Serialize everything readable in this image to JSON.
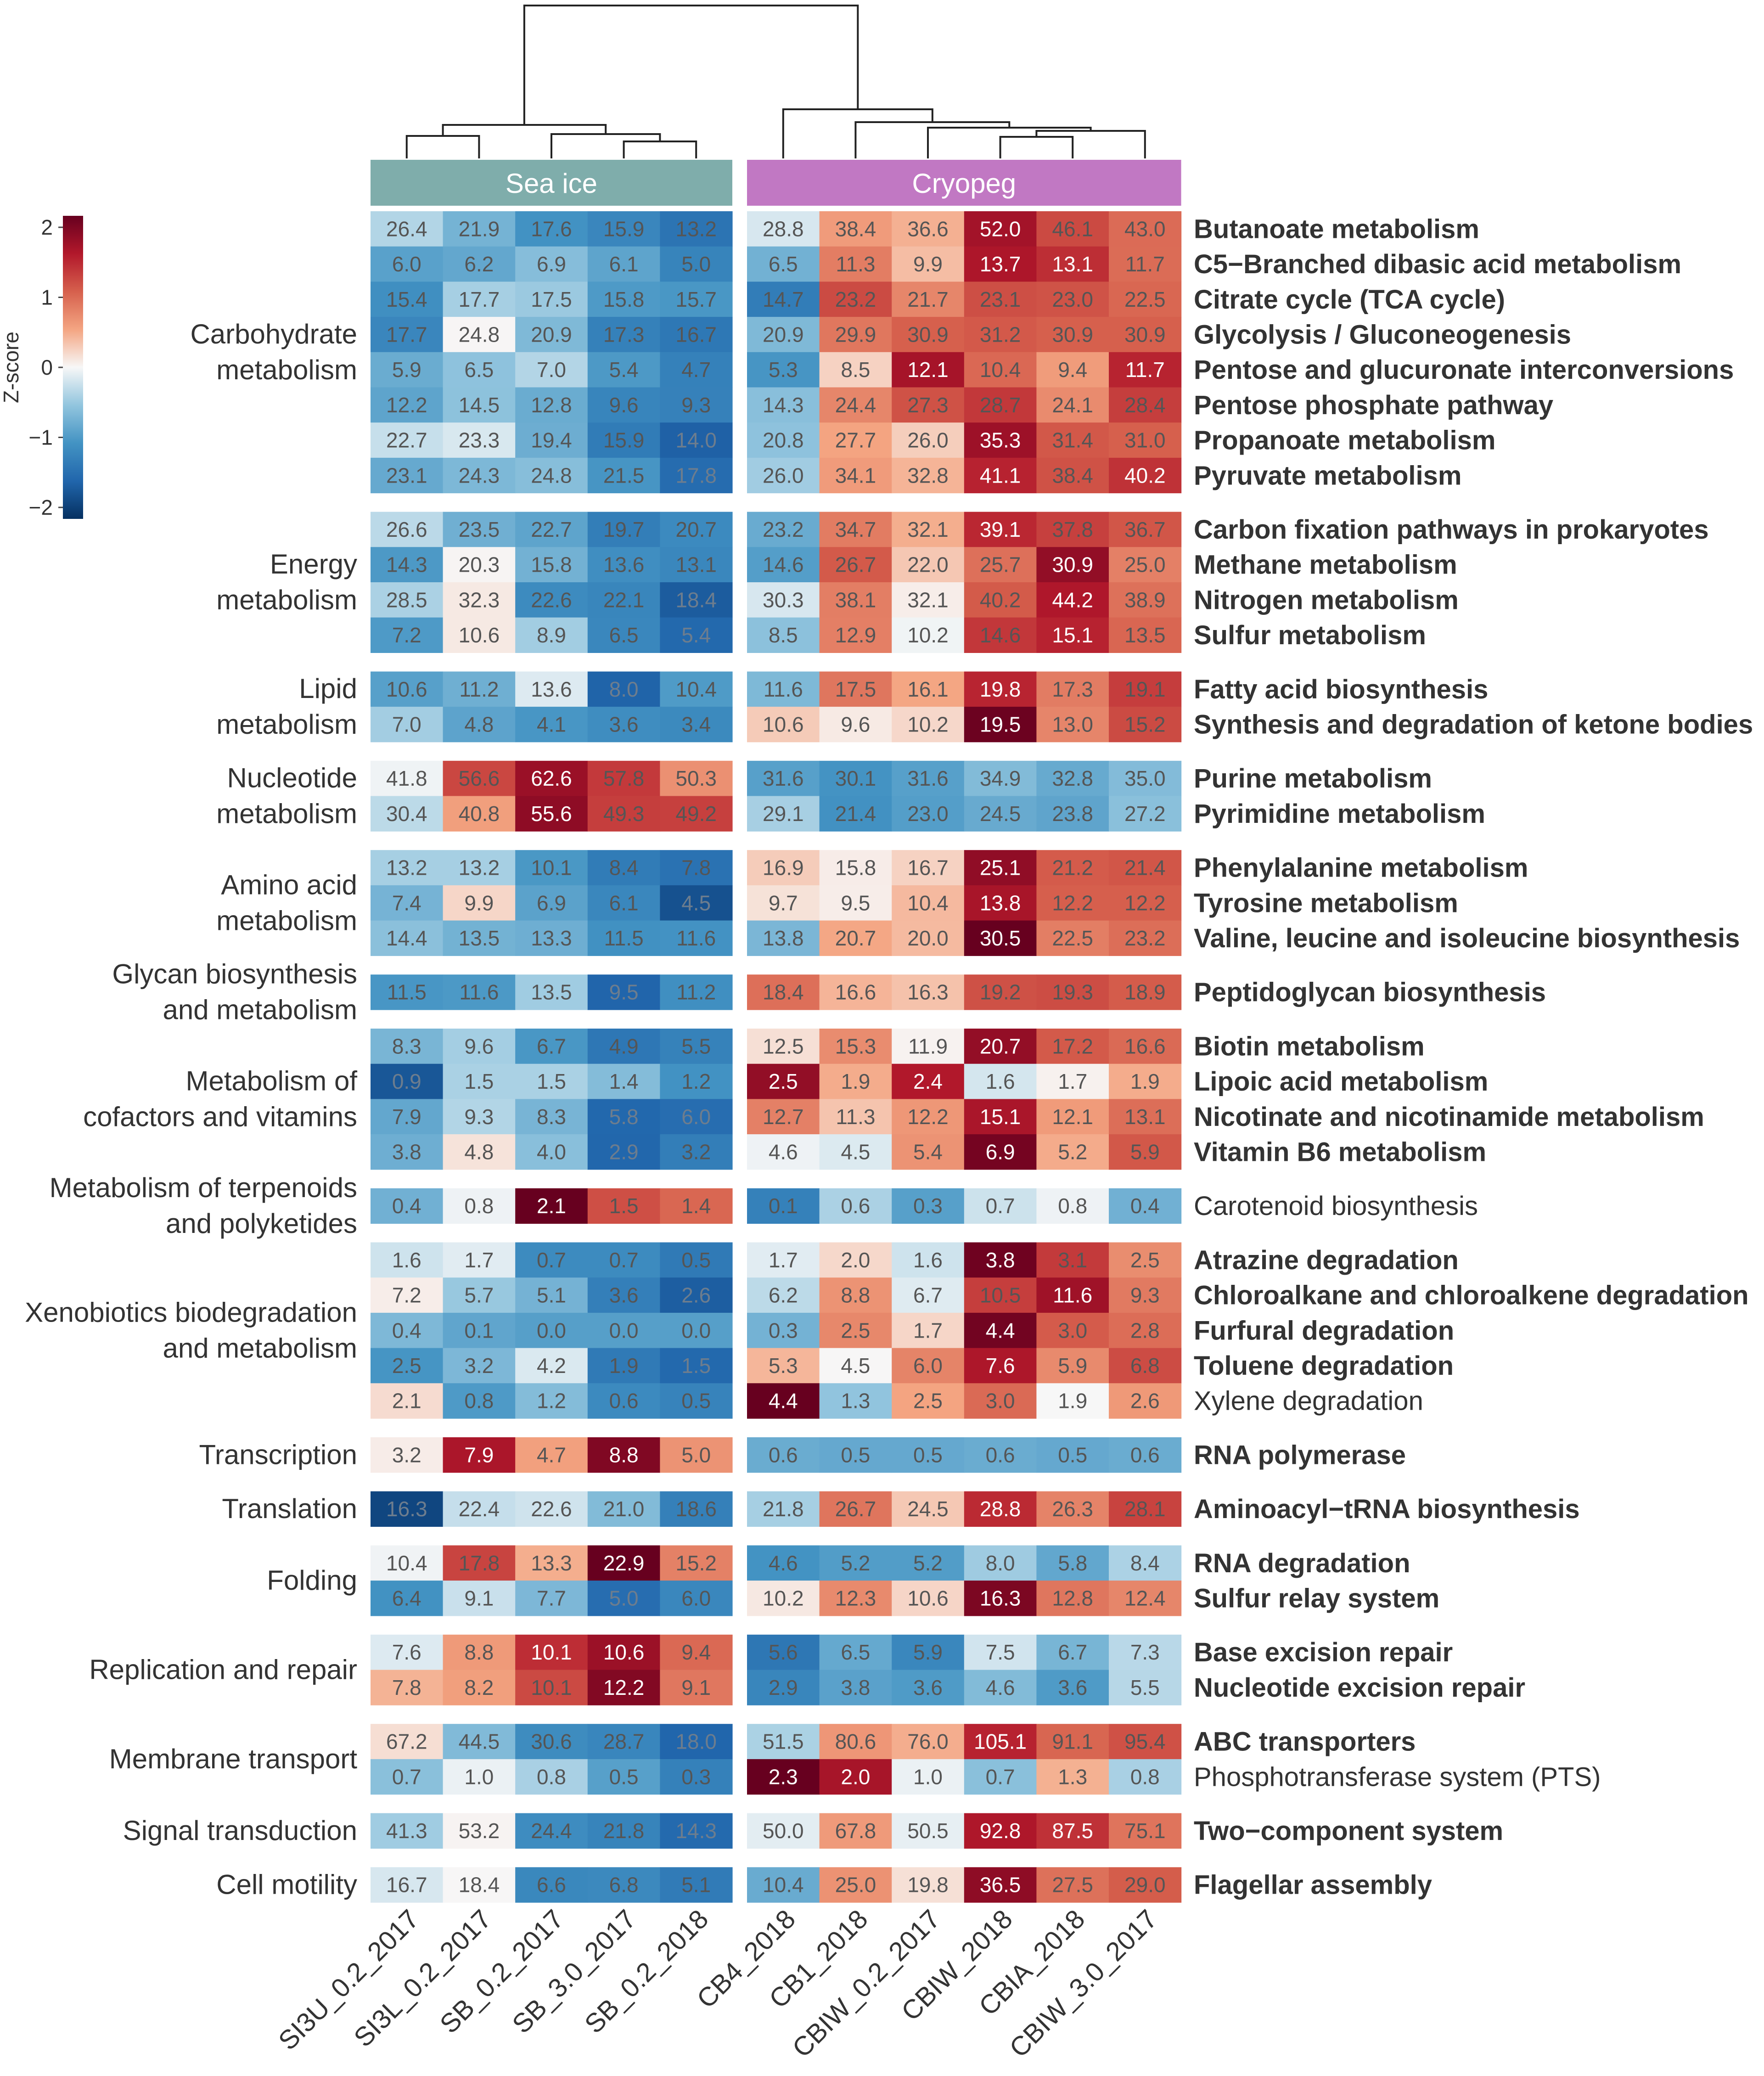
{
  "chart_data": {
    "type": "heatmap",
    "groups": [
      {
        "label": "Sea ice",
        "color": "#7fadab",
        "columns": [
          "SI3U_0.2_2017",
          "SI3L_0.2_2017",
          "SB_0.2_2017",
          "SB_3.0_2017",
          "SB_0.2_2018"
        ]
      },
      {
        "label": "Cryopeg",
        "color": "#c178c3",
        "columns": [
          "CB4_2018",
          "CB1_2018",
          "CBIW_0.2_2017",
          "CBIW_2018",
          "CBIA_2018",
          "CBIW_3.0_2017"
        ]
      }
    ],
    "colorbar": {
      "label": "Z-score",
      "min": -2,
      "max": 2,
      "ticks": [
        "2",
        "1",
        "0",
        "−1",
        "−2"
      ]
    },
    "categories": [
      {
        "label_lines": [
          "Carbohydrate",
          "metabolism"
        ],
        "pathways": [
          {
            "name": "Butanoate metabolism",
            "bold": true,
            "values": [
              26.4,
              21.9,
              17.6,
              15.9,
              13.2,
              28.8,
              38.4,
              36.6,
              52.0,
              46.1,
              43.0
            ]
          },
          {
            "name": "C5−Branched dibasic acid metabolism",
            "bold": true,
            "values": [
              6.0,
              6.2,
              6.9,
              6.1,
              5.0,
              6.5,
              11.3,
              9.9,
              13.7,
              13.1,
              11.7
            ]
          },
          {
            "name": "Citrate cycle (TCA cycle)",
            "bold": true,
            "values": [
              15.4,
              17.7,
              17.5,
              15.8,
              15.7,
              14.7,
              23.2,
              21.7,
              23.1,
              23.0,
              22.5
            ]
          },
          {
            "name": "Glycolysis / Gluconeogenesis",
            "bold": true,
            "values": [
              17.7,
              24.8,
              20.9,
              17.3,
              16.7,
              20.9,
              29.9,
              30.9,
              31.2,
              30.9,
              30.9
            ]
          },
          {
            "name": "Pentose and glucuronate interconversions",
            "bold": true,
            "values": [
              5.9,
              6.5,
              7.0,
              5.4,
              4.7,
              5.3,
              8.5,
              12.1,
              10.4,
              9.4,
              11.7
            ]
          },
          {
            "name": "Pentose phosphate pathway",
            "bold": true,
            "values": [
              12.2,
              14.5,
              12.8,
              9.6,
              9.3,
              14.3,
              24.4,
              27.3,
              28.7,
              24.1,
              28.4
            ]
          },
          {
            "name": "Propanoate metabolism",
            "bold": true,
            "values": [
              22.7,
              23.3,
              19.4,
              15.9,
              14.0,
              20.8,
              27.7,
              26.0,
              35.3,
              31.4,
              31.0
            ]
          },
          {
            "name": "Pyruvate metabolism",
            "bold": true,
            "values": [
              23.1,
              24.3,
              24.8,
              21.5,
              17.8,
              26.0,
              34.1,
              32.8,
              41.1,
              38.4,
              40.2
            ]
          }
        ]
      },
      {
        "label_lines": [
          "Energy",
          "metabolism"
        ],
        "pathways": [
          {
            "name": "Carbon fixation pathways in prokaryotes",
            "bold": true,
            "values": [
              26.6,
              23.5,
              22.7,
              19.7,
              20.7,
              23.2,
              34.7,
              32.1,
              39.1,
              37.8,
              36.7
            ]
          },
          {
            "name": "Methane metabolism",
            "bold": true,
            "values": [
              14.3,
              20.3,
              15.8,
              13.6,
              13.1,
              14.6,
              26.7,
              22.0,
              25.7,
              30.9,
              25.0
            ]
          },
          {
            "name": "Nitrogen metabolism",
            "bold": true,
            "values": [
              28.5,
              32.3,
              22.6,
              22.1,
              18.4,
              30.3,
              38.1,
              32.1,
              40.2,
              44.2,
              38.9
            ]
          },
          {
            "name": "Sulfur metabolism",
            "bold": true,
            "values": [
              7.2,
              10.6,
              8.9,
              6.5,
              5.4,
              8.5,
              12.9,
              10.2,
              14.6,
              15.1,
              13.5
            ]
          }
        ]
      },
      {
        "label_lines": [
          "Lipid",
          "metabolism"
        ],
        "pathways": [
          {
            "name": "Fatty acid biosynthesis",
            "bold": true,
            "values": [
              10.6,
              11.2,
              13.6,
              8.0,
              10.4,
              11.6,
              17.5,
              16.1,
              19.8,
              17.3,
              19.1
            ]
          },
          {
            "name": "Synthesis and degradation of ketone bodies",
            "bold": true,
            "values": [
              7.0,
              4.8,
              4.1,
              3.6,
              3.4,
              10.6,
              9.6,
              10.2,
              19.5,
              13.0,
              15.2
            ]
          }
        ]
      },
      {
        "label_lines": [
          "Nucleotide",
          "metabolism"
        ],
        "pathways": [
          {
            "name": "Purine metabolism",
            "bold": true,
            "values": [
              41.8,
              56.6,
              62.6,
              57.8,
              50.3,
              31.6,
              30.1,
              31.6,
              34.9,
              32.8,
              35.0
            ]
          },
          {
            "name": "Pyrimidine metabolism",
            "bold": true,
            "values": [
              30.4,
              40.8,
              55.6,
              49.3,
              49.2,
              29.1,
              21.4,
              23.0,
              24.5,
              23.8,
              27.2
            ]
          }
        ]
      },
      {
        "label_lines": [
          "Amino acid",
          "metabolism"
        ],
        "pathways": [
          {
            "name": "Phenylalanine metabolism",
            "bold": true,
            "values": [
              13.2,
              13.2,
              10.1,
              8.4,
              7.8,
              16.9,
              15.8,
              16.7,
              25.1,
              21.2,
              21.4
            ]
          },
          {
            "name": "Tyrosine metabolism",
            "bold": true,
            "values": [
              7.4,
              9.9,
              6.9,
              6.1,
              4.5,
              9.7,
              9.5,
              10.4,
              13.8,
              12.2,
              12.2
            ]
          },
          {
            "name": "Valine, leucine and isoleucine biosynthesis",
            "bold": true,
            "values": [
              14.4,
              13.5,
              13.3,
              11.5,
              11.6,
              13.8,
              20.7,
              20.0,
              30.5,
              22.5,
              23.2
            ]
          }
        ]
      },
      {
        "label_lines": [
          "Glycan biosynthesis",
          "and metabolism"
        ],
        "pathways": [
          {
            "name": "Peptidoglycan biosynthesis",
            "bold": true,
            "values": [
              11.5,
              11.6,
              13.5,
              9.5,
              11.2,
              18.4,
              16.6,
              16.3,
              19.2,
              19.3,
              18.9
            ]
          }
        ]
      },
      {
        "label_lines": [
          "Metabolism of",
          "cofactors and vitamins"
        ],
        "pathways": [
          {
            "name": "Biotin metabolism",
            "bold": true,
            "values": [
              8.3,
              9.6,
              6.7,
              4.9,
              5.5,
              12.5,
              15.3,
              11.9,
              20.7,
              17.2,
              16.6
            ]
          },
          {
            "name": "Lipoic acid metabolism",
            "bold": true,
            "values": [
              0.9,
              1.5,
              1.5,
              1.4,
              1.2,
              2.5,
              1.9,
              2.4,
              1.6,
              1.7,
              1.9
            ]
          },
          {
            "name": "Nicotinate and nicotinamide metabolism",
            "bold": true,
            "values": [
              7.9,
              9.3,
              8.3,
              5.8,
              6.0,
              12.7,
              11.3,
              12.2,
              15.1,
              12.1,
              13.1
            ]
          },
          {
            "name": "Vitamin B6 metabolism",
            "bold": true,
            "values": [
              3.8,
              4.8,
              4.0,
              2.9,
              3.2,
              4.6,
              4.5,
              5.4,
              6.9,
              5.2,
              5.9
            ]
          }
        ]
      },
      {
        "label_lines": [
          "Metabolism of terpenoids",
          "and polyketides"
        ],
        "pathways": [
          {
            "name": "Carotenoid biosynthesis",
            "bold": false,
            "values": [
              0.4,
              0.8,
              2.1,
              1.5,
              1.4,
              0.1,
              0.6,
              0.3,
              0.7,
              0.8,
              0.4
            ]
          }
        ]
      },
      {
        "label_lines": [
          "Xenobiotics biodegradation",
          "and metabolism"
        ],
        "pathways": [
          {
            "name": "Atrazine degradation",
            "bold": true,
            "values": [
              1.6,
              1.7,
              0.7,
              0.7,
              0.5,
              1.7,
              2.0,
              1.6,
              3.8,
              3.1,
              2.5
            ]
          },
          {
            "name": "Chloroalkane and chloroalkene degradation",
            "bold": true,
            "values": [
              7.2,
              5.7,
              5.1,
              3.6,
              2.6,
              6.2,
              8.8,
              6.7,
              10.5,
              11.6,
              9.3
            ]
          },
          {
            "name": "Furfural degradation",
            "bold": true,
            "values": [
              0.4,
              0.1,
              0.0,
              0.0,
              0.0,
              0.3,
              2.5,
              1.7,
              4.4,
              3.0,
              2.8
            ]
          },
          {
            "name": "Toluene degradation",
            "bold": true,
            "values": [
              2.5,
              3.2,
              4.2,
              1.9,
              1.5,
              5.3,
              4.5,
              6.0,
              7.6,
              5.9,
              6.8
            ]
          },
          {
            "name": "Xylene degradation",
            "bold": false,
            "values": [
              2.1,
              0.8,
              1.2,
              0.6,
              0.5,
              4.4,
              1.3,
              2.5,
              3.0,
              1.9,
              2.6
            ]
          }
        ]
      },
      {
        "label_lines": [
          "Transcription"
        ],
        "pathways": [
          {
            "name": "RNA polymerase",
            "bold": true,
            "values": [
              3.2,
              7.9,
              4.7,
              8.8,
              5.0,
              0.6,
              0.5,
              0.5,
              0.6,
              0.5,
              0.6
            ]
          }
        ]
      },
      {
        "label_lines": [
          "Translation"
        ],
        "pathways": [
          {
            "name": "Aminoacyl−tRNA biosynthesis",
            "bold": true,
            "values": [
              16.3,
              22.4,
              22.6,
              21.0,
              18.6,
              21.8,
              26.7,
              24.5,
              28.8,
              26.3,
              28.1
            ]
          }
        ]
      },
      {
        "label_lines": [
          "Folding"
        ],
        "pathways": [
          {
            "name": "RNA degradation",
            "bold": true,
            "values": [
              10.4,
              17.8,
              13.3,
              22.9,
              15.2,
              4.6,
              5.2,
              5.2,
              8.0,
              5.8,
              8.4
            ]
          },
          {
            "name": "Sulfur relay system",
            "bold": true,
            "values": [
              6.4,
              9.1,
              7.7,
              5.0,
              6.0,
              10.2,
              12.3,
              10.6,
              16.3,
              12.8,
              12.4
            ]
          }
        ]
      },
      {
        "label_lines": [
          "Replication and repair"
        ],
        "pathways": [
          {
            "name": "Base excision repair",
            "bold": true,
            "values": [
              7.6,
              8.8,
              10.1,
              10.6,
              9.4,
              5.6,
              6.5,
              5.9,
              7.5,
              6.7,
              7.3
            ]
          },
          {
            "name": "Nucleotide excision repair",
            "bold": true,
            "values": [
              7.8,
              8.2,
              10.1,
              12.2,
              9.1,
              2.9,
              3.8,
              3.6,
              4.6,
              3.6,
              5.5
            ]
          }
        ]
      },
      {
        "label_lines": [
          "Membrane transport"
        ],
        "pathways": [
          {
            "name": "ABC transporters",
            "bold": true,
            "values": [
              67.2,
              44.5,
              30.6,
              28.7,
              18.0,
              51.5,
              80.6,
              76.0,
              105.1,
              91.1,
              95.4
            ]
          },
          {
            "name": "Phosphotransferase system (PTS)",
            "bold": false,
            "values": [
              0.7,
              1.0,
              0.8,
              0.5,
              0.3,
              2.3,
              2.0,
              1.0,
              0.7,
              1.3,
              0.8
            ]
          }
        ]
      },
      {
        "label_lines": [
          "Signal transduction"
        ],
        "pathways": [
          {
            "name": "Two−component system",
            "bold": true,
            "values": [
              41.3,
              53.2,
              24.4,
              21.8,
              14.3,
              50.0,
              67.8,
              50.5,
              92.8,
              87.5,
              75.1
            ]
          }
        ]
      },
      {
        "label_lines": [
          "Cell motility"
        ],
        "pathways": [
          {
            "name": "Flagellar assembly",
            "bold": true,
            "values": [
              16.7,
              18.4,
              6.6,
              6.8,
              5.1,
              10.4,
              25.0,
              19.8,
              36.5,
              27.5,
              29.0
            ]
          }
        ]
      }
    ]
  }
}
